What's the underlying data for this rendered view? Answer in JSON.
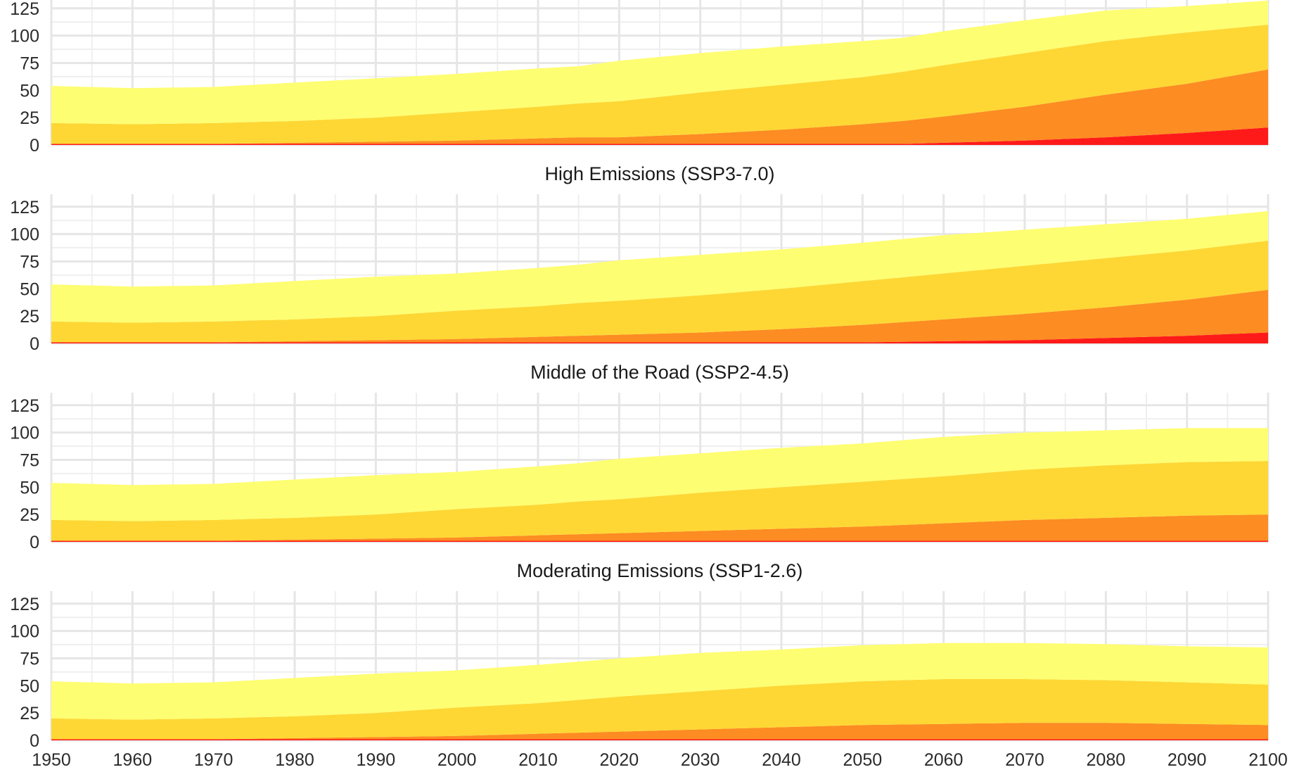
{
  "chart_data": [
    {
      "type": "area",
      "stacked": true,
      "title": "",
      "xlabel": "",
      "ylabel": "",
      "xlim": [
        1950,
        2100
      ],
      "ylim": [
        0,
        130
      ],
      "yticks": [
        0,
        25,
        50,
        75,
        100,
        125
      ],
      "xticks": [
        1950,
        1960,
        1970,
        1980,
        1990,
        2000,
        2010,
        2020,
        2030,
        2040,
        2050,
        2060,
        2070,
        2080,
        2090,
        2100
      ],
      "show_xtick_labels": false,
      "grid": true,
      "x": [
        1950,
        1960,
        1970,
        1980,
        1990,
        2000,
        2010,
        2015,
        2020,
        2030,
        2040,
        2050,
        2055,
        2060,
        2070,
        2080,
        2090,
        2100
      ],
      "series": [
        {
          "color": "#ff1a1a",
          "values": [
            1,
            1,
            1,
            1,
            1,
            1,
            1,
            1,
            1,
            1,
            1,
            1,
            1,
            2,
            4,
            7,
            11,
            16
          ]
        },
        {
          "color": "#fd8c22",
          "values": [
            0,
            0,
            0,
            1,
            2,
            3,
            5,
            6,
            6,
            9,
            13,
            18,
            21,
            24,
            31,
            39,
            45,
            53
          ]
        },
        {
          "color": "#fed734",
          "values": [
            19,
            18,
            19,
            20,
            22,
            26,
            29,
            31,
            33,
            38,
            41,
            43,
            45,
            47,
            49,
            49,
            47,
            41
          ]
        },
        {
          "color": "#fefe72",
          "values": [
            34,
            33,
            33,
            35,
            36,
            35,
            35,
            34,
            37,
            36,
            35,
            33,
            31,
            31,
            30,
            28,
            24,
            22
          ]
        }
      ]
    },
    {
      "type": "area",
      "stacked": true,
      "title": "High Emissions (SSP3-7.0)",
      "xlabel": "",
      "ylabel": "",
      "xlim": [
        1950,
        2100
      ],
      "ylim": [
        0,
        130
      ],
      "yticks": [
        0,
        25,
        50,
        75,
        100,
        125
      ],
      "xticks": [
        1950,
        1960,
        1970,
        1980,
        1990,
        2000,
        2010,
        2015,
        2020,
        2030,
        2040,
        2050,
        2060,
        2070,
        2080,
        2090,
        2100
      ],
      "show_xtick_labels": false,
      "grid": true,
      "x": [
        1950,
        1960,
        1970,
        1980,
        1990,
        2000,
        2010,
        2015,
        2020,
        2030,
        2040,
        2050,
        2060,
        2070,
        2080,
        2090,
        2100
      ],
      "series": [
        {
          "color": "#ff1a1a",
          "values": [
            1,
            1,
            1,
            1,
            1,
            1,
            1,
            1,
            1,
            1,
            1,
            1,
            2,
            3,
            5,
            7,
            10
          ]
        },
        {
          "color": "#fd8c22",
          "values": [
            0,
            0,
            0,
            1,
            2,
            3,
            5,
            6,
            7,
            9,
            12,
            16,
            20,
            24,
            28,
            33,
            39
          ]
        },
        {
          "color": "#fed734",
          "values": [
            19,
            18,
            19,
            20,
            22,
            26,
            28,
            30,
            31,
            34,
            37,
            40,
            42,
            44,
            45,
            45,
            45
          ]
        },
        {
          "color": "#fefe72",
          "values": [
            34,
            33,
            33,
            35,
            36,
            34,
            35,
            35,
            37,
            37,
            36,
            35,
            35,
            33,
            31,
            29,
            27
          ]
        }
      ]
    },
    {
      "type": "area",
      "stacked": true,
      "title": "Middle of the Road (SSP2-4.5)",
      "xlabel": "",
      "ylabel": "",
      "xlim": [
        1950,
        2100
      ],
      "ylim": [
        0,
        130
      ],
      "yticks": [
        0,
        25,
        50,
        75,
        100,
        125
      ],
      "xticks": [
        1950,
        1960,
        1970,
        1980,
        1990,
        2000,
        2010,
        2020,
        2030,
        2040,
        2050,
        2060,
        2070,
        2080,
        2090,
        2100
      ],
      "show_xtick_labels": false,
      "grid": true,
      "x": [
        1950,
        1960,
        1970,
        1980,
        1990,
        2000,
        2010,
        2015,
        2020,
        2030,
        2040,
        2050,
        2060,
        2070,
        2080,
        2090,
        2100
      ],
      "series": [
        {
          "color": "#ff1a1a",
          "values": [
            1,
            1,
            1,
            1,
            1,
            1,
            1,
            1,
            1,
            1,
            1,
            1,
            1,
            1,
            1,
            1,
            1
          ]
        },
        {
          "color": "#fd8c22",
          "values": [
            0,
            0,
            0,
            1,
            2,
            3,
            5,
            6,
            7,
            9,
            11,
            13,
            16,
            19,
            21,
            23,
            24
          ]
        },
        {
          "color": "#fed734",
          "values": [
            19,
            18,
            19,
            20,
            22,
            26,
            28,
            30,
            31,
            35,
            38,
            41,
            43,
            46,
            48,
            49,
            49
          ]
        },
        {
          "color": "#fefe72",
          "values": [
            34,
            33,
            33,
            35,
            36,
            34,
            35,
            35,
            37,
            36,
            36,
            35,
            36,
            34,
            32,
            31,
            30
          ]
        }
      ]
    },
    {
      "type": "area",
      "stacked": true,
      "title": "Moderating Emissions (SSP1-2.6)",
      "xlabel": "",
      "ylabel": "",
      "xlim": [
        1950,
        2100
      ],
      "ylim": [
        0,
        130
      ],
      "yticks": [
        0,
        25,
        50,
        75,
        100,
        125
      ],
      "xticks": [
        1950,
        1960,
        1970,
        1980,
        1990,
        2000,
        2010,
        2020,
        2030,
        2040,
        2050,
        2060,
        2070,
        2080,
        2090,
        2100
      ],
      "show_xtick_labels": true,
      "grid": true,
      "x": [
        1950,
        1960,
        1970,
        1980,
        1990,
        2000,
        2010,
        2015,
        2020,
        2030,
        2040,
        2050,
        2060,
        2070,
        2080,
        2090,
        2100
      ],
      "series": [
        {
          "color": "#ff1a1a",
          "values": [
            1,
            1,
            1,
            1,
            1,
            1,
            1,
            1,
            1,
            1,
            1,
            1,
            1,
            1,
            1,
            1,
            1
          ]
        },
        {
          "color": "#fd8c22",
          "values": [
            0,
            0,
            0,
            1,
            2,
            3,
            5,
            6,
            7,
            9,
            11,
            13,
            14,
            15,
            15,
            14,
            13
          ]
        },
        {
          "color": "#fed734",
          "values": [
            19,
            18,
            19,
            20,
            22,
            26,
            28,
            30,
            32,
            35,
            38,
            40,
            41,
            40,
            39,
            38,
            37
          ]
        },
        {
          "color": "#fefe72",
          "values": [
            34,
            33,
            33,
            35,
            36,
            34,
            35,
            35,
            35,
            35,
            33,
            33,
            33,
            33,
            33,
            33,
            34
          ]
        }
      ]
    }
  ]
}
